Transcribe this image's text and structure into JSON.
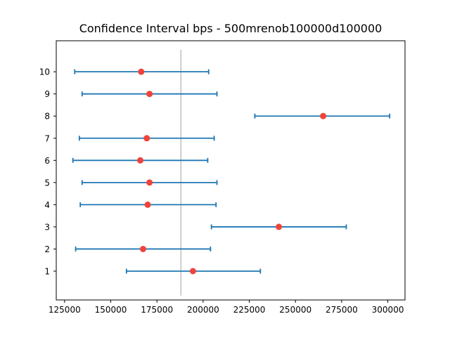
{
  "chart_data": {
    "type": "errorbar",
    "title": "Confidence Interval bps - 500mrenob100000d100000",
    "xlabel": "",
    "ylabel": "",
    "xlim": [
      120500,
      309300
    ],
    "ylim": [
      -0.3,
      11.4
    ],
    "x_ticks": [
      125000,
      150000,
      175000,
      200000,
      225000,
      250000,
      275000,
      300000
    ],
    "x_tick_labels": [
      "125000",
      "150000",
      "175000",
      "200000",
      "225000",
      "250000",
      "275000",
      "300000"
    ],
    "y_ticks": [
      1,
      2,
      3,
      4,
      5,
      6,
      7,
      8,
      9,
      10
    ],
    "y_tick_labels": [
      "1",
      "2",
      "3",
      "4",
      "5",
      "6",
      "7",
      "8",
      "9",
      "10"
    ],
    "reference_line": {
      "x": 188000,
      "y_range": [
        -0.1,
        11.0
      ],
      "color": "#bfbfbf"
    },
    "points": [
      {
        "y": 1,
        "value": 194500,
        "low": 158500,
        "high": 231000
      },
      {
        "y": 2,
        "value": 167500,
        "low": 131000,
        "high": 204000
      },
      {
        "y": 3,
        "value": 241000,
        "low": 204500,
        "high": 277500
      },
      {
        "y": 4,
        "value": 170000,
        "low": 133500,
        "high": 207000
      },
      {
        "y": 5,
        "value": 171000,
        "low": 134500,
        "high": 207500
      },
      {
        "y": 6,
        "value": 166000,
        "low": 129500,
        "high": 202500
      },
      {
        "y": 7,
        "value": 169500,
        "low": 133000,
        "high": 206000
      },
      {
        "y": 8,
        "value": 265000,
        "low": 228000,
        "high": 301000
      },
      {
        "y": 9,
        "value": 171000,
        "low": 134500,
        "high": 207500
      },
      {
        "y": 10,
        "value": 166500,
        "low": 130500,
        "high": 203000
      }
    ],
    "interval_color": "#1f77b4",
    "marker_color": "#f0433a",
    "grid": false,
    "legend": "none"
  }
}
